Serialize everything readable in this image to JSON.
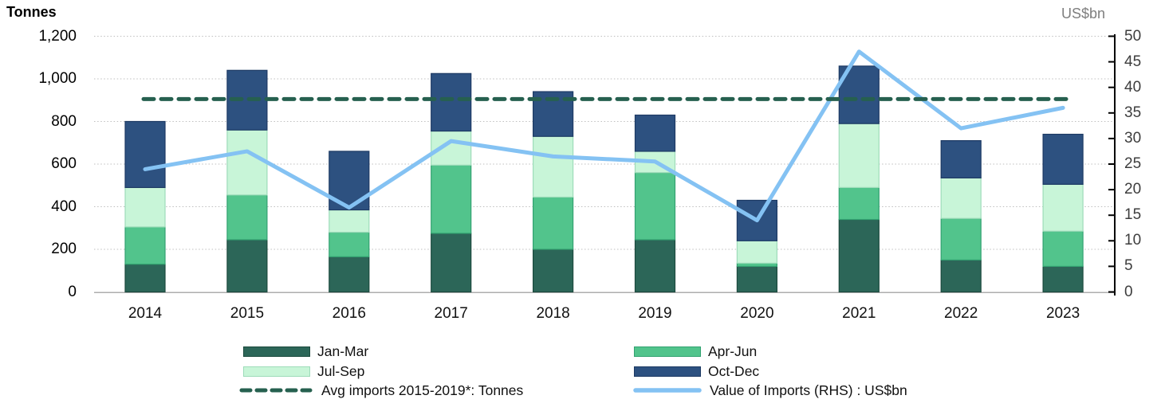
{
  "titles": {
    "left_axis": "Tonnes",
    "right_axis": "US$bn"
  },
  "axes": {
    "left_tick_labels": [
      "0",
      "200",
      "400",
      "600",
      "800",
      "1,000",
      "1,200"
    ],
    "left_tick_values": [
      0,
      200,
      400,
      600,
      800,
      1000,
      1200
    ],
    "right_tick_labels": [
      "0",
      "5",
      "10",
      "15",
      "20",
      "25",
      "30",
      "35",
      "40",
      "45",
      "50"
    ],
    "right_tick_values": [
      0,
      5,
      10,
      15,
      20,
      25,
      30,
      35,
      40,
      45,
      50
    ]
  },
  "colors": {
    "gridline": "#bfbfbf",
    "axis_bottom": "#adadad",
    "axis_right": "#000000",
    "q1": "#2c6658",
    "q1_border": "#1c4a3e",
    "q2": "#52c48c",
    "q2_border": "#33a271",
    "q3": "#c8f5d8",
    "q3_border": "#9edcba",
    "q4": "#2d5180",
    "q4_border": "#1d3a64",
    "avg_line": "#26604f",
    "value_line": "#84c2f3"
  },
  "legend": {
    "items": [
      {
        "label": "Jan-Mar"
      },
      {
        "label": "Apr-Jun"
      },
      {
        "label": "Jul-Sep"
      },
      {
        "label": "Oct-Dec"
      },
      {
        "label": "Avg imports 2015-2019*: Tonnes"
      },
      {
        "label": "Value of Imports (RHS) : US$bn"
      }
    ]
  },
  "chart_data": {
    "type": "bar",
    "subtype": "stacked-bars-with-line-overlay",
    "title": "",
    "categories": [
      "2014",
      "2015",
      "2016",
      "2017",
      "2018",
      "2019",
      "2020",
      "2021",
      "2022",
      "2023"
    ],
    "left_axis": {
      "title": "Tonnes",
      "min": 0,
      "max": 1200,
      "step": 200
    },
    "right_axis": {
      "title": "US$bn",
      "min": 0,
      "max": 50,
      "step": 5
    },
    "grid": true,
    "legend_position": "bottom",
    "series": [
      {
        "name": "Jan-Mar",
        "type": "bar",
        "axis": "left",
        "color": "#2c6658",
        "border_color": "#1c4a3e",
        "values": [
          130,
          245,
          165,
          275,
          200,
          245,
          120,
          340,
          150,
          120
        ]
      },
      {
        "name": "Apr-Jun",
        "type": "bar",
        "axis": "left",
        "color": "#52c48c",
        "border_color": "#33a271",
        "values": [
          175,
          210,
          115,
          320,
          245,
          315,
          15,
          150,
          195,
          165
        ]
      },
      {
        "name": "Jul-Sep",
        "type": "bar",
        "axis": "left",
        "color": "#c8f5d8",
        "border_color": "#9edcba",
        "values": [
          185,
          305,
          105,
          160,
          285,
          100,
          105,
          300,
          190,
          220
        ]
      },
      {
        "name": "Oct-Dec",
        "type": "bar",
        "axis": "left",
        "color": "#2d5180",
        "border_color": "#1d3a64",
        "values": [
          310,
          280,
          275,
          270,
          210,
          170,
          190,
          270,
          175,
          235
        ]
      }
    ],
    "bar_totals": [
      800,
      1040,
      660,
      1025,
      940,
      830,
      430,
      1060,
      710,
      740
    ],
    "avg_line": {
      "name": "Avg imports 2015-2019*: Tonnes",
      "axis": "left",
      "style": "dashed",
      "color": "#26604f",
      "value": 905
    },
    "value_line": {
      "name": "Value of Imports (RHS) : US$bn",
      "axis": "right",
      "style": "solid",
      "color": "#84c2f3",
      "values": [
        24,
        27.5,
        16.5,
        29.5,
        26.5,
        25.5,
        14,
        47,
        32,
        36
      ]
    }
  }
}
